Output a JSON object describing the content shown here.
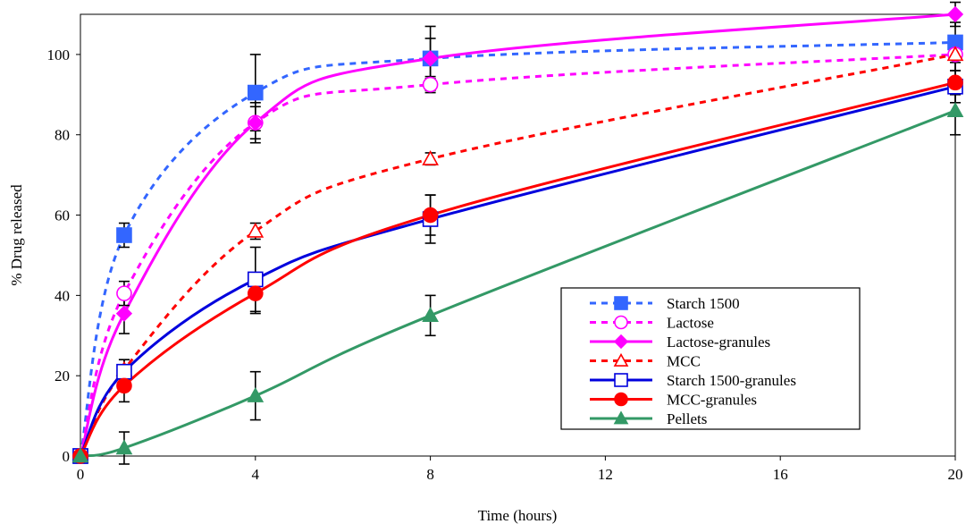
{
  "chart_data": {
    "type": "line",
    "title": "",
    "xlabel": "Time (hours)",
    "ylabel": "% Drug released",
    "xlim": [
      0,
      20
    ],
    "ylim": [
      0,
      110
    ],
    "xticks": [
      0,
      4,
      8,
      12,
      16,
      20
    ],
    "yticks": [
      0,
      20,
      40,
      60,
      80,
      100
    ],
    "grid": false,
    "legend_position": "bottom-right",
    "series": [
      {
        "name": "Starch 1500",
        "color": "#3366ff",
        "dash": "dashed",
        "marker": "filled-square",
        "points": [
          [
            0,
            0
          ],
          [
            1,
            55
          ],
          [
            4,
            90.5
          ],
          [
            8,
            99
          ],
          [
            20,
            103
          ]
        ],
        "error": [
          0,
          3,
          9.5,
          8,
          5
        ]
      },
      {
        "name": "Lactose",
        "color": "#ff00ff",
        "dash": "dashed",
        "marker": "open-circle",
        "points": [
          [
            0,
            0
          ],
          [
            1,
            40.5
          ],
          [
            4,
            83
          ],
          [
            8,
            92.5
          ],
          [
            20,
            100
          ]
        ],
        "error": [
          0,
          3,
          4,
          2,
          4
        ]
      },
      {
        "name": "Lactose-granules",
        "color": "#ff00ff",
        "dash": "solid",
        "marker": "filled-diamond",
        "points": [
          [
            0,
            0
          ],
          [
            1,
            35.5
          ],
          [
            4,
            83
          ],
          [
            8,
            99
          ],
          [
            20,
            110
          ]
        ],
        "error": [
          0,
          5,
          5,
          5,
          3
        ]
      },
      {
        "name": "MCC",
        "color": "#ff0000",
        "dash": "dashed",
        "marker": "open-triangle",
        "points": [
          [
            0,
            0
          ],
          [
            1,
            21.5
          ],
          [
            4,
            56
          ],
          [
            8,
            74
          ],
          [
            20,
            100
          ]
        ],
        "error": [
          0,
          2.5,
          2,
          1.5,
          4
        ]
      },
      {
        "name": "Starch 1500-granules",
        "color": "#0000dd",
        "dash": "solid",
        "marker": "open-square",
        "points": [
          [
            0,
            0
          ],
          [
            1,
            21
          ],
          [
            4,
            44
          ],
          [
            8,
            59
          ],
          [
            20,
            92
          ]
        ],
        "error": [
          0,
          3,
          8,
          6,
          4
        ]
      },
      {
        "name": "MCC-granules",
        "color": "#ff0000",
        "dash": "solid",
        "marker": "filled-circle",
        "points": [
          [
            0,
            0
          ],
          [
            1,
            17.5
          ],
          [
            4,
            40.5
          ],
          [
            8,
            60
          ],
          [
            20,
            93
          ]
        ],
        "error": [
          0,
          4,
          5,
          5,
          3
        ]
      },
      {
        "name": "Pellets",
        "color": "#339966",
        "dash": "solid",
        "marker": "filled-triangle",
        "points": [
          [
            0,
            0
          ],
          [
            1,
            2
          ],
          [
            4,
            15
          ],
          [
            8,
            35
          ],
          [
            20,
            86
          ]
        ],
        "error": [
          0,
          4,
          6,
          5,
          6
        ]
      }
    ]
  }
}
